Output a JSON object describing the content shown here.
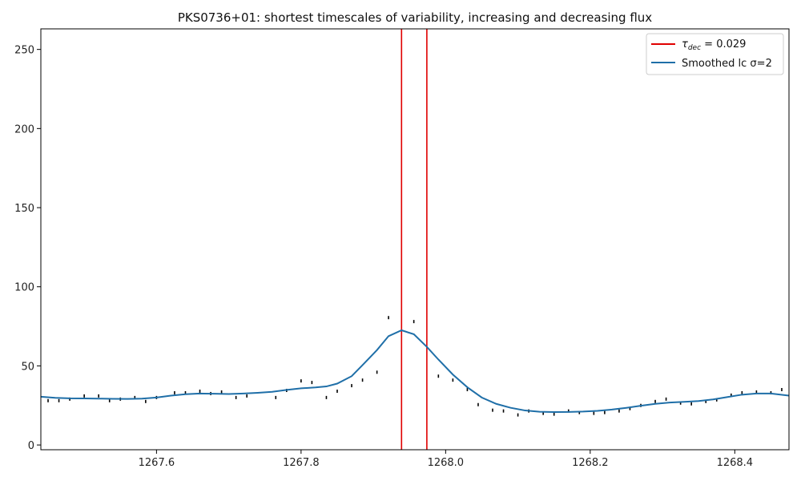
{
  "chart_data": {
    "type": "line",
    "title": "PKS0736+01: shortest timescales of variability, increasing and decreasing flux",
    "xlabel": "",
    "ylabel": "",
    "xlim": [
      1267.44,
      1268.475
    ],
    "ylim": [
      -3,
      263
    ],
    "x_ticks": [
      1267.6,
      1267.8,
      1268.0,
      1268.2,
      1268.4
    ],
    "x_tick_labels": [
      "1267.6",
      "1267.8",
      "1268.0",
      "1268.2",
      "1268.4"
    ],
    "y_ticks": [
      0,
      50,
      100,
      150,
      200,
      250
    ],
    "y_tick_labels": [
      "0",
      "50",
      "100",
      "150",
      "200",
      "250"
    ],
    "grid": false,
    "legend_position": "top-right",
    "vlines": {
      "color": "#e00000",
      "x": [
        1267.939,
        1267.974
      ],
      "legend_label_tau": "τ",
      "legend_label_sub": "dec",
      "legend_label_rest": " = 0.029"
    },
    "smoothed": {
      "name": "Smoothed lc σ=2",
      "color": "#1f6fa8",
      "x": [
        1267.44,
        1267.46,
        1267.48,
        1267.5,
        1267.52,
        1267.54,
        1267.56,
        1267.58,
        1267.6,
        1267.62,
        1267.64,
        1267.66,
        1267.68,
        1267.7,
        1267.72,
        1267.74,
        1267.76,
        1267.78,
        1267.8,
        1267.82,
        1267.835,
        1267.85,
        1267.87,
        1267.885,
        1267.905,
        1267.921,
        1267.939,
        1267.956,
        1267.974,
        1267.99,
        1268.01,
        1268.03,
        1268.05,
        1268.07,
        1268.09,
        1268.11,
        1268.13,
        1268.15,
        1268.17,
        1268.19,
        1268.21,
        1268.23,
        1268.25,
        1268.27,
        1268.29,
        1268.31,
        1268.33,
        1268.35,
        1268.37,
        1268.39,
        1268.41,
        1268.43,
        1268.45,
        1268.475
      ],
      "y": [
        30.5,
        29.8,
        29.5,
        29.4,
        29.3,
        29.2,
        29.1,
        29.3,
        30.0,
        31.2,
        32.1,
        32.5,
        32.4,
        32.2,
        32.5,
        33.0,
        33.6,
        34.8,
        35.8,
        36.4,
        37.0,
        38.8,
        43.5,
        50.5,
        60.0,
        68.8,
        72.5,
        70.0,
        62.0,
        54.0,
        44.5,
        36.5,
        30.0,
        26.0,
        23.5,
        21.8,
        21.0,
        20.8,
        20.9,
        21.1,
        21.6,
        22.4,
        23.5,
        24.8,
        26.0,
        26.8,
        27.3,
        27.8,
        28.8,
        30.3,
        31.8,
        32.5,
        32.5,
        31.2
      ]
    },
    "data_points": {
      "color": "#000000",
      "x": [
        1267.45,
        1267.465,
        1267.48,
        1267.5,
        1267.52,
        1267.535,
        1267.55,
        1267.57,
        1267.585,
        1267.6,
        1267.625,
        1267.64,
        1267.66,
        1267.675,
        1267.69,
        1267.71,
        1267.725,
        1267.765,
        1267.78,
        1267.8,
        1267.815,
        1267.835,
        1267.85,
        1267.87,
        1267.885,
        1267.905,
        1267.921,
        1267.956,
        1267.99,
        1268.01,
        1268.03,
        1268.045,
        1268.065,
        1268.08,
        1268.1,
        1268.115,
        1268.135,
        1268.15,
        1268.17,
        1268.185,
        1268.205,
        1268.22,
        1268.24,
        1268.255,
        1268.27,
        1268.29,
        1268.305,
        1268.325,
        1268.34,
        1268.36,
        1268.375,
        1268.395,
        1268.41,
        1268.43,
        1268.45,
        1268.465
      ],
      "y": [
        28.0,
        28.0,
        29.0,
        31.0,
        31.0,
        28.0,
        29.0,
        30.0,
        27.5,
        30.0,
        33.0,
        33.0,
        34.0,
        32.5,
        33.5,
        30.0,
        31.0,
        30.0,
        34.5,
        40.5,
        39.5,
        30.0,
        34.0,
        37.5,
        41.0,
        46.0,
        80.5,
        78.0,
        43.5,
        41.0,
        35.0,
        25.5,
        22.0,
        21.5,
        19.0,
        21.5,
        20.0,
        19.5,
        21.5,
        20.5,
        20.0,
        20.5,
        21.5,
        23.0,
        25.0,
        27.5,
        29.0,
        26.5,
        26.0,
        27.5,
        28.5,
        31.5,
        33.0,
        33.5,
        33.0,
        35.0
      ]
    }
  }
}
